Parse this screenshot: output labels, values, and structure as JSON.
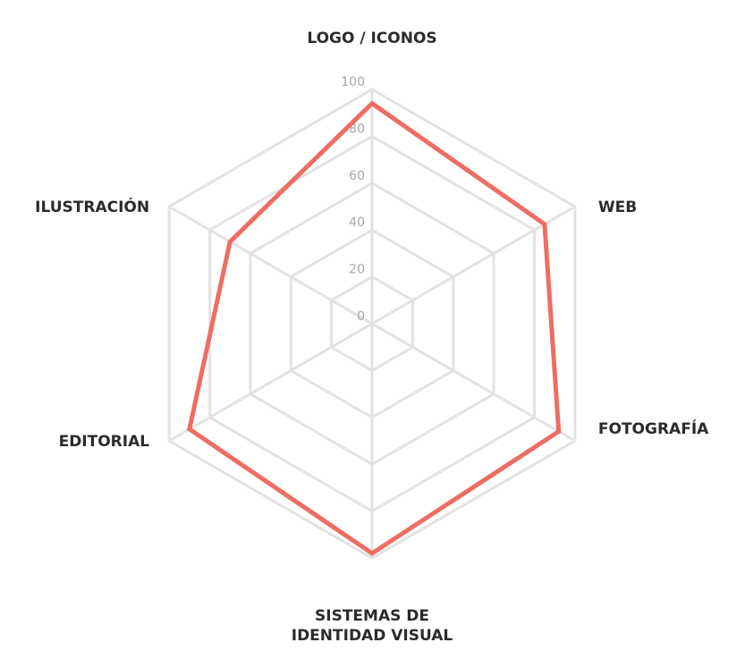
{
  "chart_data": {
    "type": "radar",
    "title": "",
    "categories": [
      "LOGO / ICONOS",
      "WEB",
      "FOTOGRAFÍA",
      [
        "SISTEMAS DE",
        "IDENTIDAD VISUAL"
      ],
      "EDITORIAL",
      "ILUSTRACIÓN"
    ],
    "rlim": [
      0,
      100
    ],
    "ticks": [
      "0",
      "20",
      "40",
      "60",
      "80",
      "100"
    ],
    "series": [
      {
        "values": [
          94,
          85,
          92,
          98,
          90,
          70
        ]
      }
    ],
    "grid": true,
    "colors": {
      "series": "#ee6d63",
      "grid": "#e2e2e2",
      "tick_text": "#a6a6a6",
      "label_text": "#2b2b2b"
    }
  }
}
